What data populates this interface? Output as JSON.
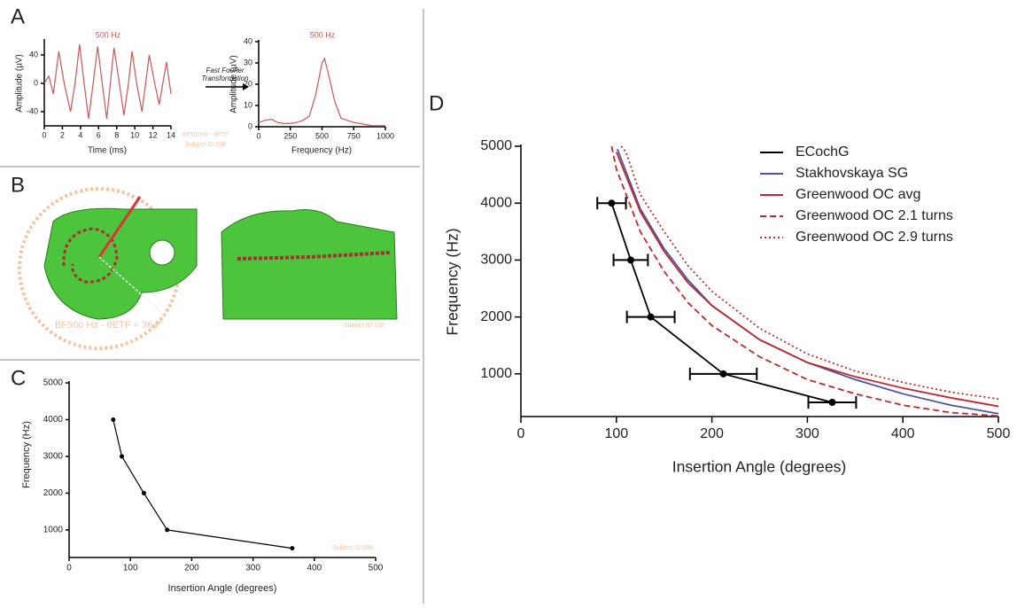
{
  "panel_labels": [
    "A",
    "B",
    "C",
    "D"
  ],
  "fft_label": [
    "Fast Fourier",
    "Transformation"
  ],
  "panel_b": {
    "annotation": "BF500 Hz - θETF = 364°",
    "subject": "Subject ID 038"
  },
  "chart_data": [
    {
      "type": "line",
      "title": "500 Hz",
      "x_label": "Time (ms)",
      "y_label": "Amplitude (µV)",
      "xlim": [
        0,
        14
      ],
      "xticks": [
        0,
        2,
        4,
        6,
        8,
        10,
        12,
        14
      ],
      "ylim": [
        -60,
        60
      ],
      "yticks": [
        -40,
        0,
        40
      ],
      "annotations": [
        "BF500Hz - θETF",
        "Subject ID 038"
      ],
      "series": [
        {
          "color": "#c8585a",
          "x": [
            0,
            0.5,
            1.0,
            1.6,
            2.2,
            2.9,
            3.4,
            3.9,
            4.4,
            4.9,
            5.4,
            5.9,
            6.4,
            6.9,
            7.3,
            7.7,
            8.3,
            8.8,
            9.3,
            9.7,
            10.2,
            10.8,
            11.2,
            11.6,
            12.2,
            12.7,
            13.1,
            13.5,
            14
          ],
          "values": [
            0,
            10,
            -15,
            45,
            0,
            -40,
            0,
            55,
            0,
            -50,
            0,
            52,
            0,
            -50,
            0,
            50,
            0,
            -45,
            0,
            45,
            0,
            -40,
            0,
            40,
            0,
            -30,
            0,
            30,
            -15
          ]
        }
      ]
    },
    {
      "type": "line",
      "title": "500 Hz",
      "x_label": "Frequency (Hz)",
      "y_label": "Amplitude (µV)",
      "xlim": [
        0,
        1000
      ],
      "xticks": [
        0,
        250,
        500,
        750,
        1000
      ],
      "ylim": [
        0,
        40
      ],
      "yticks": [
        0,
        10,
        20,
        30,
        40
      ],
      "series": [
        {
          "color": "#c8585a",
          "x": [
            0,
            50,
            100,
            150,
            200,
            250,
            300,
            350,
            400,
            450,
            500,
            520,
            550,
            600,
            650,
            700,
            750,
            800,
            850,
            900,
            950,
            1000
          ],
          "values": [
            2,
            3,
            3.5,
            2,
            1.5,
            1.5,
            2,
            3,
            5,
            15,
            30,
            32,
            25,
            12,
            4,
            3,
            2,
            1.5,
            1,
            0.5,
            0.5,
            0.5
          ]
        }
      ]
    },
    {
      "type": "line",
      "x_label": "Insertion Angle (degrees)",
      "y_label": "Frequency (Hz)",
      "xlim": [
        0,
        500
      ],
      "xticks": [
        0,
        100,
        200,
        300,
        400,
        500
      ],
      "ylim": [
        250,
        5000
      ],
      "yticks": [
        1000,
        2000,
        3000,
        4000,
        5000
      ],
      "annotations": [
        "Subject ID 038"
      ],
      "series": [
        {
          "color": "#000000",
          "markers": true,
          "x": [
            72,
            86,
            122,
            160,
            364
          ],
          "values": [
            4000,
            3000,
            2000,
            1000,
            500
          ]
        }
      ]
    },
    {
      "type": "line",
      "x_label": "Insertion Angle (degrees)",
      "y_label": "Frequency (Hz)",
      "xlim": [
        0,
        500
      ],
      "xticks": [
        0,
        100,
        200,
        300,
        400,
        500
      ],
      "ylim": [
        250,
        5000
      ],
      "yticks": [
        1000,
        2000,
        3000,
        4000,
        5000
      ],
      "legend": "upper right",
      "series": [
        {
          "name": "ECochG",
          "color": "#000000",
          "line_style": "solid",
          "markers": true,
          "x": [
            95,
            115,
            136,
            212,
            326
          ],
          "xerr": [
            15,
            18,
            25,
            35,
            25
          ],
          "values": [
            4000,
            3000,
            2000,
            1000,
            500
          ]
        },
        {
          "name": "Stakhovskaya SG",
          "color": "#4b55a8",
          "line_style": "solid",
          "x": [
            101,
            125,
            150,
            175,
            200,
            250,
            300,
            350,
            400,
            450,
            500
          ],
          "values": [
            4950,
            3900,
            3200,
            2650,
            2200,
            1600,
            1200,
            900,
            650,
            450,
            300
          ]
        },
        {
          "name": "Greenwood OC avg",
          "color": "#c0282d",
          "line_style": "solid",
          "x": [
            100,
            125,
            150,
            175,
            200,
            250,
            300,
            350,
            400,
            450,
            500
          ],
          "values": [
            4900,
            3850,
            3150,
            2600,
            2200,
            1600,
            1200,
            950,
            750,
            580,
            430
          ]
        },
        {
          "name": "Greenwood OC 2.1 turns",
          "color": "#c0282d",
          "line_style": "dashed",
          "x": [
            95,
            100,
            125,
            150,
            175,
            200,
            250,
            300,
            350,
            400,
            450,
            500
          ],
          "values": [
            5000,
            4600,
            3500,
            2800,
            2250,
            1850,
            1300,
            900,
            650,
            450,
            320,
            260
          ]
        },
        {
          "name": "Greenwood OC 2.9 turns",
          "color": "#c0282d",
          "line_style": "dotted",
          "x": [
            105,
            110,
            125,
            150,
            175,
            200,
            250,
            300,
            350,
            400,
            450,
            500
          ],
          "values": [
            5000,
            4900,
            4150,
            3500,
            2900,
            2450,
            1800,
            1350,
            1050,
            850,
            680,
            560
          ]
        }
      ]
    }
  ]
}
